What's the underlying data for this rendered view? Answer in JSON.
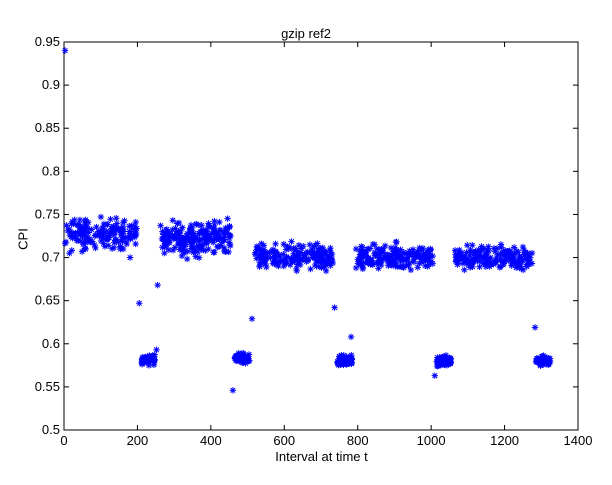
{
  "chart_data": {
    "type": "scatter",
    "title": "gzip ref2",
    "xlabel": "Interval at time t",
    "ylabel": "CPI",
    "xlim": [
      0,
      1400
    ],
    "ylim": [
      0.5,
      0.95
    ],
    "xticks": [
      "0",
      "200",
      "400",
      "600",
      "800",
      "1000",
      "1200",
      "1400"
    ],
    "yticks": [
      "0.5",
      "0.55",
      "0.6",
      "0.65",
      "0.7",
      "0.75",
      "0.8",
      "0.85",
      "0.9",
      "0.95"
    ],
    "grid": false,
    "marker": "*",
    "marker_color": "#0000ff",
    "clusters": [
      {
        "x_range": [
          2,
          200
        ],
        "y_range": [
          0.705,
          0.755
        ],
        "y_center": 0.727,
        "count": 170
      },
      {
        "x_range": [
          212,
          248
        ],
        "y_range": [
          0.575,
          0.592
        ],
        "y_center": 0.582,
        "count": 60
      },
      {
        "x_range": [
          262,
          398
        ],
        "y_range": [
          0.695,
          0.75
        ],
        "y_center": 0.722,
        "count": 150
      },
      {
        "x_range": [
          400,
          455
        ],
        "y_range": [
          0.7,
          0.752
        ],
        "y_center": 0.725,
        "count": 55
      },
      {
        "x_range": [
          465,
          505
        ],
        "y_range": [
          0.576,
          0.592
        ],
        "y_center": 0.583,
        "count": 55
      },
      {
        "x_range": [
          520,
          735
        ],
        "y_range": [
          0.68,
          0.723
        ],
        "y_center": 0.7,
        "count": 190
      },
      {
        "x_range": [
          745,
          785
        ],
        "y_range": [
          0.572,
          0.592
        ],
        "y_center": 0.58,
        "count": 60
      },
      {
        "x_range": [
          795,
          1005
        ],
        "y_range": [
          0.68,
          0.722
        ],
        "y_center": 0.7,
        "count": 190
      },
      {
        "x_range": [
          1015,
          1055
        ],
        "y_range": [
          0.572,
          0.59
        ],
        "y_center": 0.58,
        "count": 55
      },
      {
        "x_range": [
          1065,
          1275
        ],
        "y_range": [
          0.682,
          0.722
        ],
        "y_center": 0.7,
        "count": 190
      },
      {
        "x_range": [
          1285,
          1325
        ],
        "y_range": [
          0.573,
          0.59
        ],
        "y_center": 0.58,
        "count": 55
      }
    ],
    "outliers": [
      {
        "x": 3,
        "y": 0.94
      },
      {
        "x": 205,
        "y": 0.647
      },
      {
        "x": 255,
        "y": 0.668
      },
      {
        "x": 252,
        "y": 0.593
      },
      {
        "x": 460,
        "y": 0.546
      },
      {
        "x": 512,
        "y": 0.629
      },
      {
        "x": 737,
        "y": 0.642
      },
      {
        "x": 782,
        "y": 0.608
      },
      {
        "x": 1010,
        "y": 0.563
      },
      {
        "x": 1283,
        "y": 0.619
      },
      {
        "x": 15,
        "y": 0.705
      },
      {
        "x": 180,
        "y": 0.7
      }
    ]
  }
}
